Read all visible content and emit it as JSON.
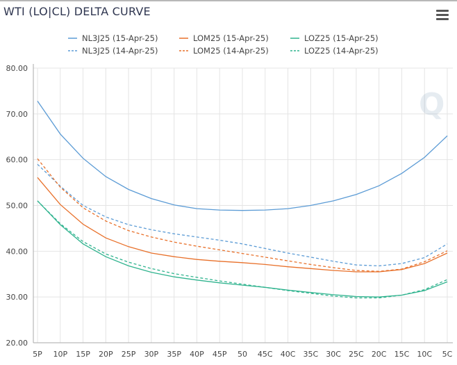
{
  "header": {
    "title": "WTI (LO|CL) DELTA CURVE",
    "menu_icon": "hamburger-icon"
  },
  "chart_data": {
    "type": "line",
    "title": "WTI (LO|CL) DELTA CURVE",
    "xlabel": "",
    "ylabel": "",
    "categories": [
      "5P",
      "10P",
      "15P",
      "20P",
      "25P",
      "30P",
      "35P",
      "40P",
      "45P",
      "50",
      "45C",
      "40C",
      "35C",
      "30C",
      "25C",
      "20C",
      "15C",
      "10C",
      "5C"
    ],
    "ylim": [
      20,
      80
    ],
    "yticks": [
      "20.00",
      "30.00",
      "40.00",
      "50.00",
      "60.00",
      "70.00",
      "80.00"
    ],
    "grid": true,
    "legend_position": "top-center",
    "series": [
      {
        "name": "NL3J25 (15-Apr-25)",
        "color": "#5b9bd5",
        "dash": false,
        "values": [
          72.8,
          65.6,
          60.3,
          56.3,
          53.5,
          51.5,
          50.1,
          49.3,
          49.0,
          48.9,
          49.0,
          49.3,
          50.0,
          51.0,
          52.4,
          54.3,
          57.0,
          60.5,
          65.2
        ]
      },
      {
        "name": "LOM25 (15-Apr-25)",
        "color": "#e8702a",
        "dash": false,
        "values": [
          56.1,
          50.2,
          45.9,
          42.9,
          41.0,
          39.6,
          38.8,
          38.2,
          37.8,
          37.5,
          37.1,
          36.6,
          36.2,
          35.8,
          35.5,
          35.5,
          36.0,
          37.3,
          39.6
        ]
      },
      {
        "name": "LOZ25 (15-Apr-25)",
        "color": "#2fb38e",
        "dash": false,
        "values": [
          51.0,
          45.8,
          41.6,
          38.8,
          36.8,
          35.4,
          34.4,
          33.7,
          33.1,
          32.6,
          32.1,
          31.5,
          31.0,
          30.5,
          30.1,
          30.0,
          30.4,
          31.4,
          33.3
        ]
      },
      {
        "name": "NL3J25 (14-Apr-25)",
        "color": "#5b9bd5",
        "dash": true,
        "values": [
          59.0,
          54.2,
          50.0,
          47.5,
          45.8,
          44.7,
          43.8,
          43.1,
          42.4,
          41.6,
          40.6,
          39.6,
          38.7,
          37.8,
          37.0,
          36.8,
          37.3,
          38.6,
          41.6
        ]
      },
      {
        "name": "LOM25 (14-Apr-25)",
        "color": "#e8702a",
        "dash": true,
        "values": [
          60.2,
          54.0,
          49.5,
          46.6,
          44.5,
          43.1,
          42.0,
          41.1,
          40.3,
          39.5,
          38.7,
          37.9,
          37.1,
          36.4,
          35.8,
          35.6,
          36.1,
          37.7,
          40.1
        ]
      },
      {
        "name": "LOZ25 (14-Apr-25)",
        "color": "#2fb38e",
        "dash": true,
        "values": [
          51.0,
          46.0,
          42.1,
          39.4,
          37.6,
          36.2,
          35.1,
          34.3,
          33.5,
          32.8,
          32.1,
          31.4,
          30.8,
          30.2,
          29.8,
          29.8,
          30.4,
          31.6,
          33.8
        ]
      }
    ]
  }
}
